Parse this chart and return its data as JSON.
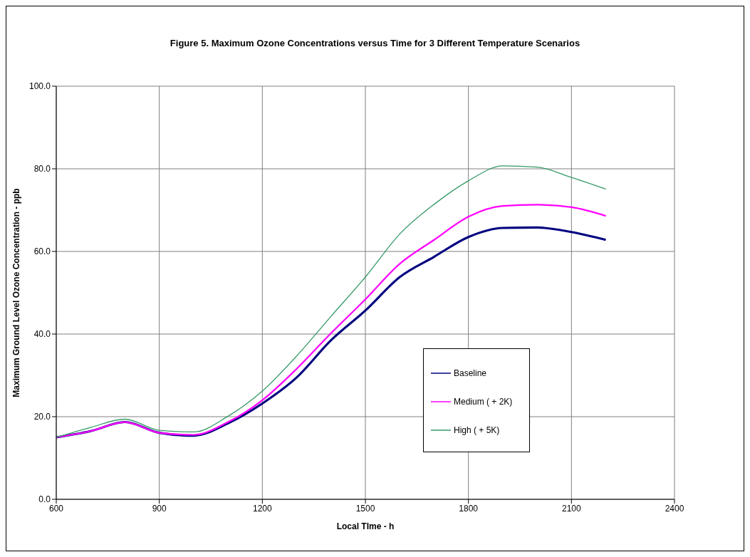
{
  "chart_data": {
    "type": "line",
    "title": "Figure 5. Maximum Ozone Concentrations versus Time for 3 Different Temperature Scenarios",
    "xlabel": "Local TIme - h",
    "ylabel": "Maximum Ground Level Ozone Concentration - ppb",
    "x": [
      600,
      700,
      800,
      900,
      1000,
      1100,
      1200,
      1300,
      1400,
      1500,
      1600,
      1700,
      1800,
      1900,
      2000,
      2100,
      2200
    ],
    "series": [
      {
        "name": "Baseline",
        "color": "#000080",
        "values": [
          15.0,
          16.5,
          18.7,
          16.1,
          15.4,
          18.4,
          23.2,
          29.5,
          38.5,
          45.7,
          53.8,
          58.7,
          63.5,
          65.7,
          65.8,
          64.7,
          62.8
        ]
      },
      {
        "name": "Medium ( + 2K)",
        "color": "#ff00ff",
        "values": [
          15.0,
          16.5,
          18.7,
          16.1,
          15.6,
          18.7,
          24.0,
          31.6,
          40.2,
          48.4,
          57.0,
          62.8,
          68.4,
          71.0,
          71.3,
          70.7,
          68.6
        ]
      },
      {
        "name": "High ( + 5K)",
        "color": "#339966",
        "values": [
          15.0,
          17.4,
          19.4,
          16.7,
          16.3,
          20.1,
          26.2,
          34.7,
          44.3,
          53.8,
          64.2,
          71.4,
          77.1,
          80.7,
          80.4,
          77.9,
          75.1
        ]
      }
    ],
    "xlim": [
      600,
      2400
    ],
    "xticks": [
      600,
      900,
      1200,
      1500,
      1800,
      2100,
      2400
    ],
    "ylim": [
      0,
      100
    ],
    "yticks": [
      {
        "value": 0,
        "label": "0.0"
      },
      {
        "value": 20,
        "label": "20.0"
      },
      {
        "value": 40,
        "label": "40.0"
      },
      {
        "value": 60,
        "label": "60.0"
      },
      {
        "value": 80,
        "label": "80.0"
      },
      {
        "value": 100,
        "label": "100.0"
      }
    ],
    "grid": true,
    "legend": "bottom right",
    "marker": "none",
    "line_style": "solid"
  }
}
